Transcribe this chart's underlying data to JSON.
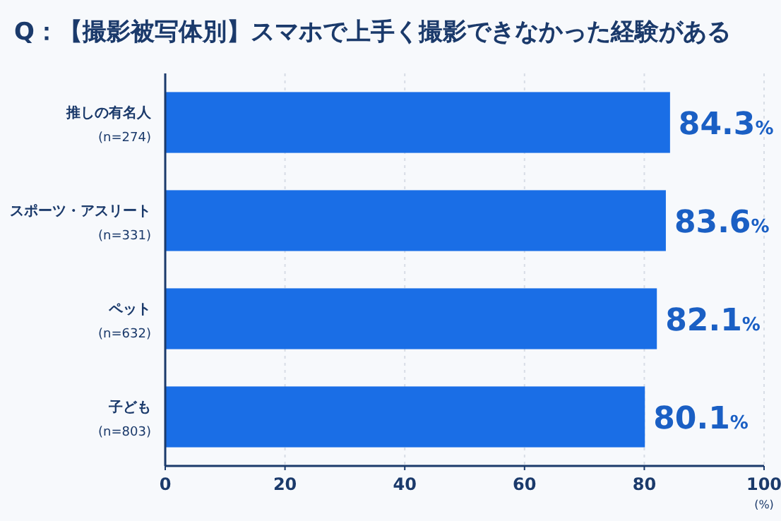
{
  "chart_data": {
    "type": "bar",
    "orientation": "horizontal",
    "title": "Q：【撮影被写体別】スマホで上手く撮影できなかった経験がある",
    "categories": [
      "推しの有名人\n(n=274)",
      "スポーツ・アスリート\n(n=331)",
      "ペット\n(n=632)",
      "子ども\n(n=803)"
    ],
    "values": [
      84.3,
      83.6,
      82.1,
      80.1
    ],
    "value_labels": [
      "84.3%",
      "83.6%",
      "82.1%",
      "80.1%"
    ],
    "color": "#1a6ee6",
    "xlim": [
      0,
      100
    ],
    "xticks": [
      0,
      20,
      40,
      60,
      80,
      100
    ],
    "xlabel": "(%)",
    "grid": "x"
  }
}
